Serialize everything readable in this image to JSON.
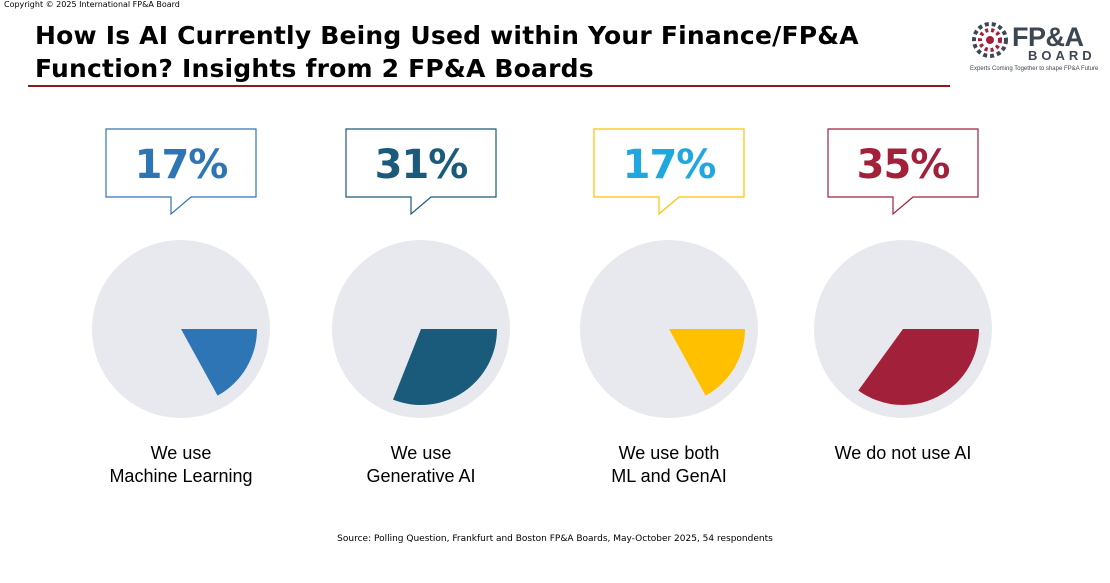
{
  "copyright": "Copyright © 2025 International FP&A Board",
  "title": "How Is AI Currently Being Used within Your Finance/FP&A Function? Insights from 2 FP&A Boards",
  "logo": {
    "name": "FP&A",
    "sub": "BOARD",
    "tagline": "Experts Coming Together to shape FP&A Future"
  },
  "chart_data": {
    "type": "pie",
    "unit": "%",
    "categories": [
      {
        "lines": [
          "We use",
          "Machine Learning"
        ],
        "value": 17,
        "label": "17%",
        "color": "#2e75b6"
      },
      {
        "lines": [
          "We use",
          "Generative AI"
        ],
        "value": 31,
        "label": "31%",
        "color": "#1a5a7a"
      },
      {
        "lines": [
          "We use both",
          "ML and GenAI"
        ],
        "value": 17,
        "label": "17%",
        "color": "#ffc000"
      },
      {
        "lines": [
          "We do not use AI"
        ],
        "value": 35,
        "label": "35%",
        "color": "#a3203a"
      }
    ],
    "label_colors": [
      "#2e75b6",
      "#1a5a7a",
      "#1fa8e0",
      "#a3203a"
    ],
    "background_color": "#e7e9ee"
  },
  "source": "Source: Polling Question, Frankfurt and Boston FP&A Boards, May-October 2025, 54 respondents"
}
